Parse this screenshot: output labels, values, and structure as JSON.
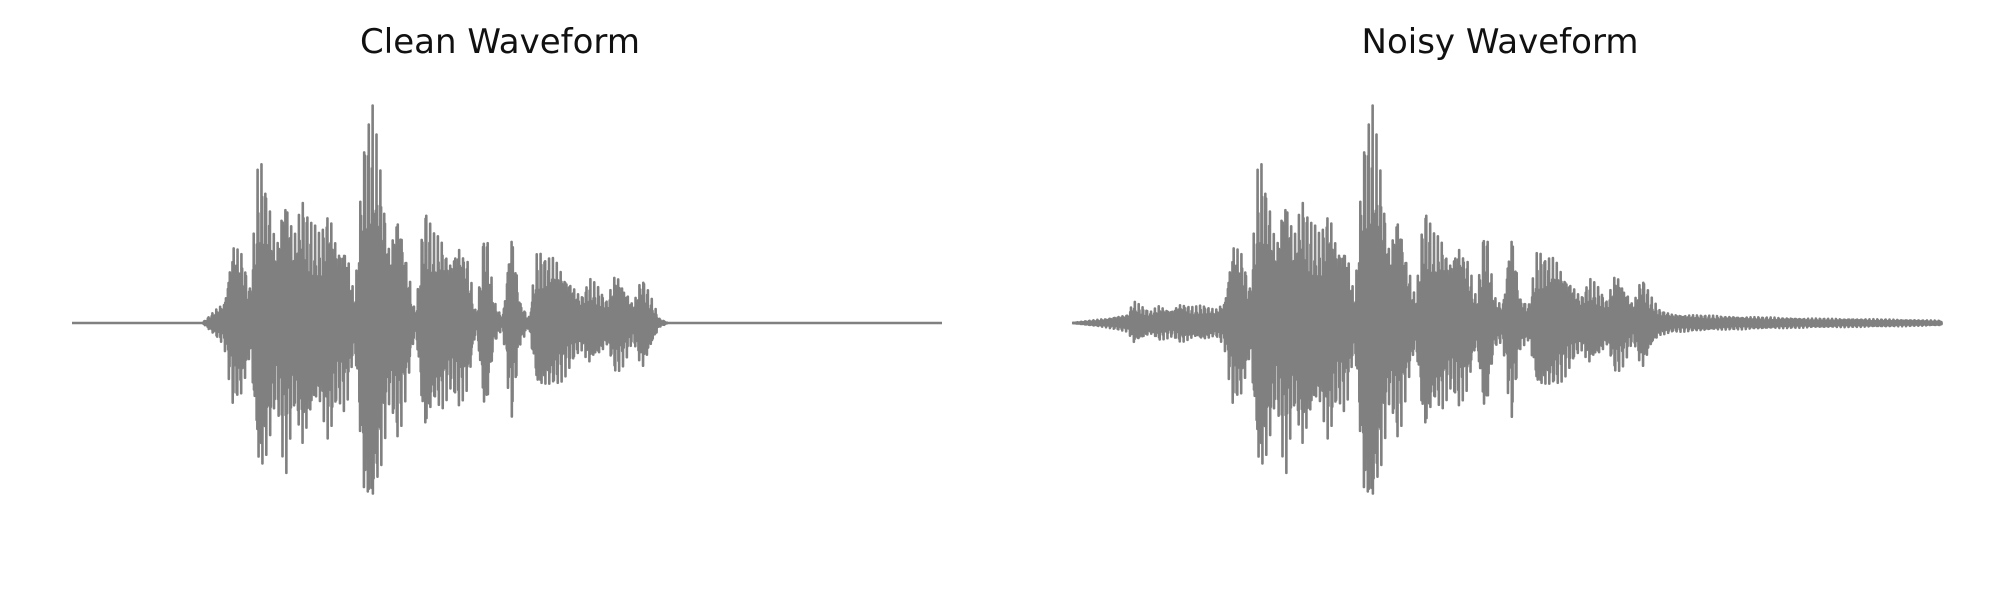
{
  "figure": {
    "waveform_color": "#808080",
    "background_color": "#ffffff"
  },
  "panels": [
    {
      "title": "Clean Waveform"
    },
    {
      "title": "Noisy Waveform"
    }
  ],
  "chart_data": [
    {
      "type": "line",
      "title": "Clean Waveform",
      "axes_visible": false,
      "grid": false,
      "x_range": [
        0,
        1
      ],
      "ylim": [
        -1,
        1
      ],
      "series": [
        {
          "envelope": [
            [
              0.0,
              0.0
            ],
            [
              0.15,
              0.0
            ],
            [
              0.16,
              0.04
            ],
            [
              0.175,
              0.1
            ],
            [
              0.185,
              0.38
            ],
            [
              0.195,
              0.33
            ],
            [
              0.205,
              0.15
            ],
            [
              0.215,
              0.78
            ],
            [
              0.225,
              0.6
            ],
            [
              0.235,
              0.35
            ],
            [
              0.245,
              0.7
            ],
            [
              0.255,
              0.4
            ],
            [
              0.265,
              0.58
            ],
            [
              0.275,
              0.45
            ],
            [
              0.285,
              0.4
            ],
            [
              0.295,
              0.55
            ],
            [
              0.305,
              0.35
            ],
            [
              0.315,
              0.4
            ],
            [
              0.325,
              0.1
            ],
            [
              0.335,
              0.82
            ],
            [
              0.345,
              0.98
            ],
            [
              0.355,
              0.7
            ],
            [
              0.365,
              0.35
            ],
            [
              0.375,
              0.55
            ],
            [
              0.385,
              0.3
            ],
            [
              0.395,
              0.02
            ],
            [
              0.405,
              0.55
            ],
            [
              0.415,
              0.4
            ],
            [
              0.425,
              0.4
            ],
            [
              0.435,
              0.3
            ],
            [
              0.445,
              0.38
            ],
            [
              0.455,
              0.3
            ],
            [
              0.465,
              0.02
            ],
            [
              0.475,
              0.48
            ],
            [
              0.485,
              0.1
            ],
            [
              0.495,
              0.02
            ],
            [
              0.505,
              0.46
            ],
            [
              0.515,
              0.1
            ],
            [
              0.525,
              0.02
            ],
            [
              0.535,
              0.33
            ],
            [
              0.545,
              0.3
            ],
            [
              0.555,
              0.3
            ],
            [
              0.565,
              0.25
            ],
            [
              0.575,
              0.18
            ],
            [
              0.585,
              0.12
            ],
            [
              0.595,
              0.2
            ],
            [
              0.605,
              0.16
            ],
            [
              0.615,
              0.1
            ],
            [
              0.625,
              0.24
            ],
            [
              0.635,
              0.18
            ],
            [
              0.645,
              0.08
            ],
            [
              0.655,
              0.22
            ],
            [
              0.665,
              0.12
            ],
            [
              0.675,
              0.02
            ],
            [
              0.685,
              0.0
            ],
            [
              1.0,
              0.0
            ]
          ]
        }
      ]
    },
    {
      "type": "line",
      "title": "Noisy Waveform",
      "axes_visible": false,
      "grid": false,
      "x_range": [
        0,
        1
      ],
      "ylim": [
        -1,
        1
      ],
      "series": [
        {
          "envelope": [
            [
              0.0,
              0.0
            ],
            [
              0.04,
              0.02
            ],
            [
              0.065,
              0.04
            ],
            [
              0.07,
              0.1
            ],
            [
              0.09,
              0.05
            ],
            [
              0.1,
              0.08
            ],
            [
              0.115,
              0.06
            ],
            [
              0.125,
              0.09
            ],
            [
              0.14,
              0.07
            ],
            [
              0.15,
              0.08
            ],
            [
              0.165,
              0.06
            ],
            [
              0.175,
              0.1
            ],
            [
              0.185,
              0.38
            ],
            [
              0.195,
              0.33
            ],
            [
              0.205,
              0.15
            ],
            [
              0.215,
              0.78
            ],
            [
              0.225,
              0.6
            ],
            [
              0.235,
              0.35
            ],
            [
              0.245,
              0.7
            ],
            [
              0.255,
              0.4
            ],
            [
              0.265,
              0.58
            ],
            [
              0.275,
              0.45
            ],
            [
              0.285,
              0.4
            ],
            [
              0.295,
              0.55
            ],
            [
              0.305,
              0.35
            ],
            [
              0.315,
              0.4
            ],
            [
              0.325,
              0.1
            ],
            [
              0.335,
              0.82
            ],
            [
              0.345,
              0.98
            ],
            [
              0.355,
              0.7
            ],
            [
              0.365,
              0.35
            ],
            [
              0.375,
              0.55
            ],
            [
              0.385,
              0.3
            ],
            [
              0.395,
              0.1
            ],
            [
              0.405,
              0.55
            ],
            [
              0.415,
              0.4
            ],
            [
              0.425,
              0.4
            ],
            [
              0.435,
              0.3
            ],
            [
              0.445,
              0.38
            ],
            [
              0.455,
              0.3
            ],
            [
              0.465,
              0.1
            ],
            [
              0.475,
              0.48
            ],
            [
              0.485,
              0.12
            ],
            [
              0.495,
              0.08
            ],
            [
              0.505,
              0.46
            ],
            [
              0.515,
              0.12
            ],
            [
              0.525,
              0.08
            ],
            [
              0.535,
              0.33
            ],
            [
              0.545,
              0.3
            ],
            [
              0.555,
              0.3
            ],
            [
              0.565,
              0.25
            ],
            [
              0.575,
              0.18
            ],
            [
              0.585,
              0.12
            ],
            [
              0.595,
              0.2
            ],
            [
              0.605,
              0.16
            ],
            [
              0.615,
              0.1
            ],
            [
              0.625,
              0.24
            ],
            [
              0.635,
              0.18
            ],
            [
              0.645,
              0.08
            ],
            [
              0.655,
              0.22
            ],
            [
              0.665,
              0.12
            ],
            [
              0.675,
              0.06
            ],
            [
              0.69,
              0.04
            ],
            [
              0.72,
              0.035
            ],
            [
              0.75,
              0.03
            ],
            [
              0.8,
              0.025
            ],
            [
              0.85,
              0.02
            ],
            [
              0.9,
              0.018
            ],
            [
              0.95,
              0.015
            ],
            [
              1.0,
              0.01
            ]
          ]
        }
      ]
    }
  ]
}
